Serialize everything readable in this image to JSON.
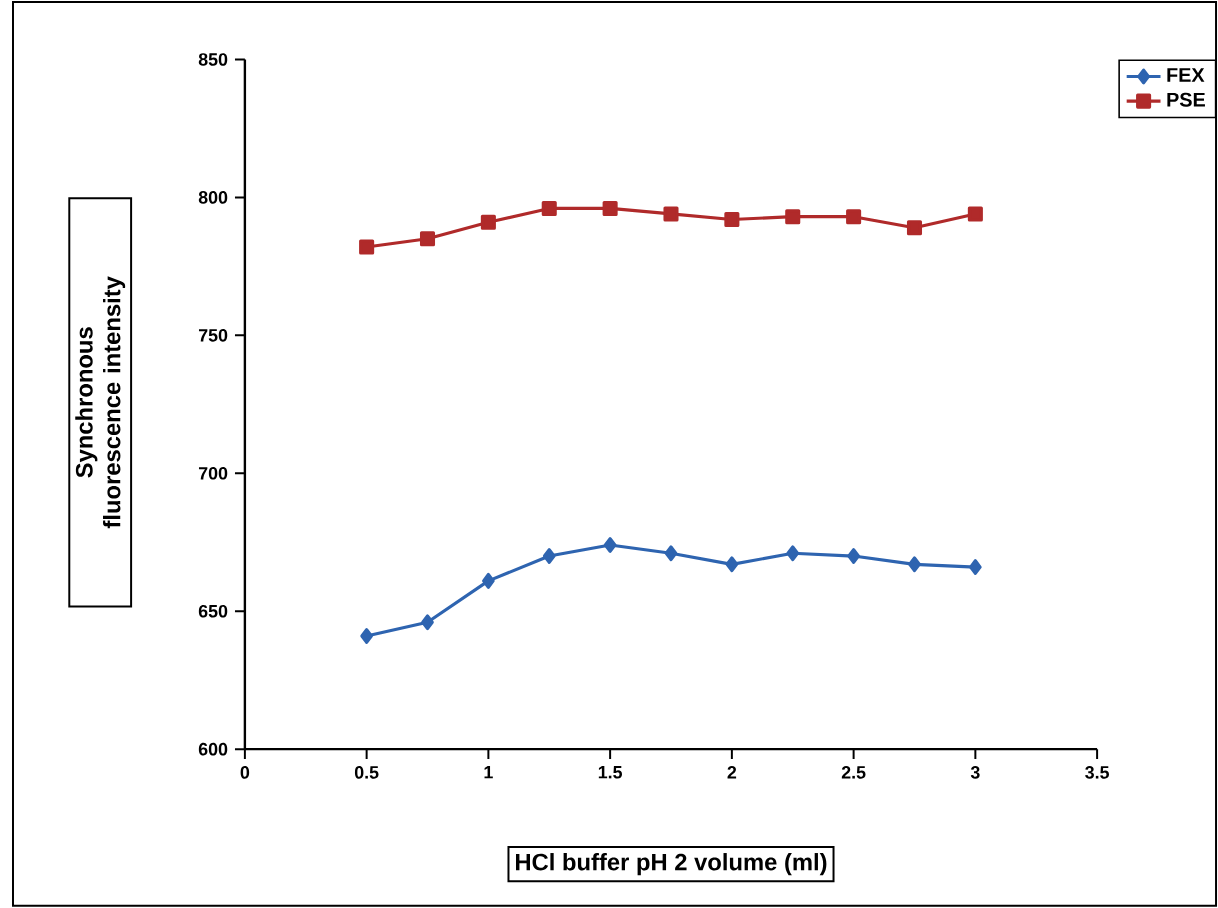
{
  "chart_data": {
    "type": "line",
    "xlabel": "HCl buffer pH 2 volume (ml)",
    "ylabel": "Synchronous fluorescence intensity",
    "x": [
      0.5,
      0.75,
      1,
      1.25,
      1.5,
      1.75,
      2,
      2.25,
      2.5,
      2.75,
      3
    ],
    "series": [
      {
        "name": "FEX",
        "color": "#2e64b0",
        "marker": "diamond",
        "values": [
          641,
          646,
          661,
          670,
          674,
          671,
          667,
          671,
          670,
          667,
          666
        ]
      },
      {
        "name": "PSE",
        "color": "#b02a2a",
        "marker": "square",
        "values": [
          782,
          785,
          791,
          796,
          796,
          794,
          792,
          793,
          793,
          789,
          794
        ]
      }
    ],
    "xlim": [
      0,
      3.5
    ],
    "xticks": [
      0,
      0.5,
      1,
      1.5,
      2,
      2.5,
      3,
      3.5
    ],
    "ylim": [
      600,
      850
    ],
    "yticks": [
      600,
      650,
      700,
      750,
      800,
      850
    ],
    "legend": "top right",
    "grid": false
  }
}
